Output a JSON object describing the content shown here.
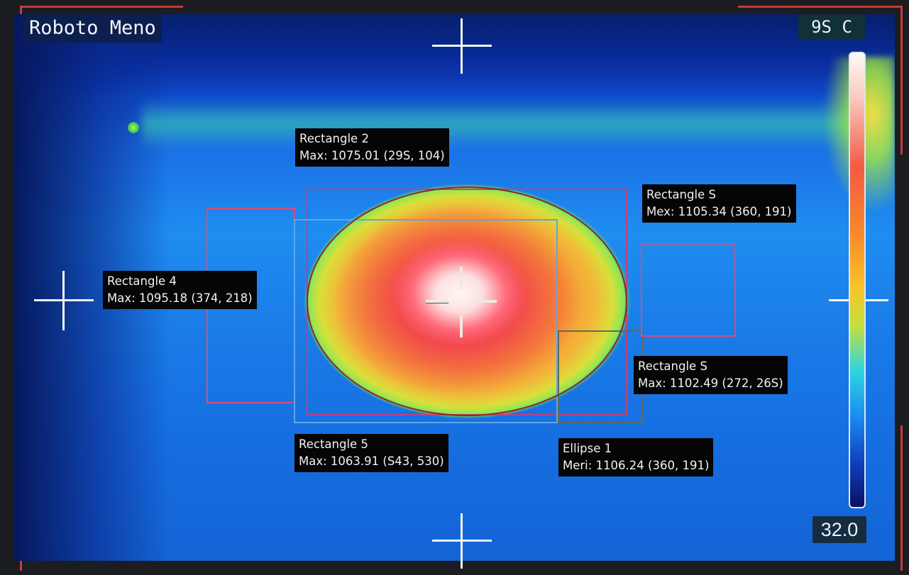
{
  "camera": {
    "name": "Roboto Meno",
    "temp_max": "9S C",
    "temp_min": "32.0"
  },
  "regions": [
    {
      "name": "Rectangle 2",
      "reading": "Max: 1075.01 (29S, 104)"
    },
    {
      "name": "Rectangle S",
      "reading": "Mex: 1105.34 (360, 191)"
    },
    {
      "name": "Rectangle 4",
      "reading": "Max: 1095.18 (374, 218)"
    },
    {
      "name": "Rectangle S",
      "reading": "Max: 1102.49 (272, 26S)"
    },
    {
      "name": "Rectangle 5",
      "reading": "Max: 1063.91 (S43, 530)"
    },
    {
      "name": "Ellipse 1",
      "reading": "Meri: 1106.24 (360, 191)"
    }
  ],
  "colors": {
    "frame_corner": "#c43a3e",
    "roi_pink": "#c2417a",
    "roi_blue": "#5aa8e8",
    "ellipse_outline": "#8c2a1c",
    "label_bg": "#050505"
  },
  "icons": [
    "crosshair-icon",
    "center-reticle-icon"
  ]
}
